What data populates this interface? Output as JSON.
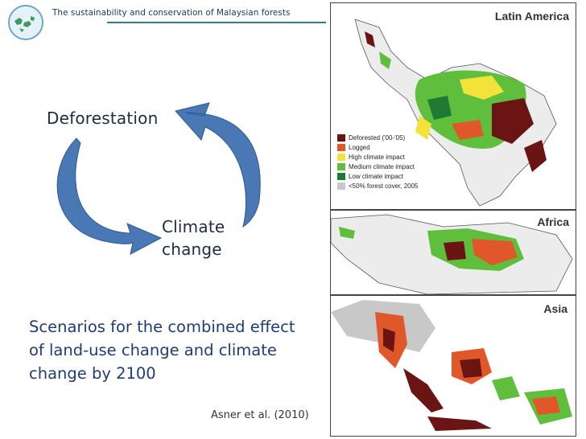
{
  "header": {
    "title": "The sustainability and conservation of Malaysian forests"
  },
  "cycle": {
    "label_top": "Deforestation",
    "label_bottom_line1": "Climate",
    "label_bottom_line2": "change",
    "arrow_color": "#4a78b5"
  },
  "scenario": {
    "line1": "Scenarios for the combined effect",
    "line2": "of land-use change and climate",
    "line3": "change by 2100"
  },
  "citation": "Asner et al. (2010)",
  "maps": {
    "regions": [
      "Latin America",
      "Africa",
      "Asia"
    ],
    "legend": [
      {
        "label": "Deforested ('00-'05)",
        "color": "#6b1414"
      },
      {
        "label": "Logged",
        "color": "#e0582a"
      },
      {
        "label": "High climate impact",
        "color": "#f2e23a"
      },
      {
        "label": "Medium climate impact",
        "color": "#5fbf3c"
      },
      {
        "label": "Low climate impact",
        "color": "#1f7a33"
      },
      {
        "label": "<50% forest cover, 2005",
        "color": "#c8c8c8"
      }
    ]
  }
}
